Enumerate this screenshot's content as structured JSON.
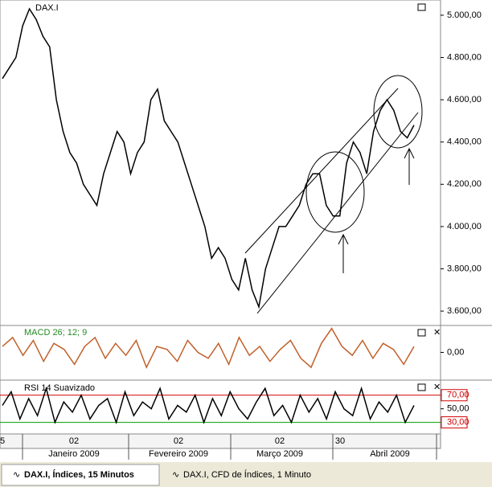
{
  "chart_data": [
    {
      "type": "line",
      "title": "DAX.I",
      "series": [
        {
          "color": "#000000",
          "values": [
            4700,
            4750,
            4800,
            4950,
            5030,
            4980,
            4900,
            4850,
            4600,
            4450,
            4350,
            4300,
            4200,
            4150,
            4100,
            4250,
            4350,
            4450,
            4400,
            4250,
            4350,
            4400,
            4600,
            4650,
            4500,
            4450,
            4400,
            4300,
            4200,
            4100,
            4000,
            3850,
            3900,
            3850,
            3750,
            3700,
            3850,
            3700,
            3620,
            3800,
            3900,
            4000,
            4000,
            4050,
            4100,
            4200,
            4250,
            4250,
            4100,
            4050,
            4050,
            4300,
            4400,
            4350,
            4250,
            4450,
            4550,
            4600,
            4550,
            4450,
            4420,
            4480
          ]
        }
      ],
      "ylim": [
        3532,
        5072
      ],
      "yticks": [
        {
          "value": 3600,
          "label": "3.600,00"
        },
        {
          "value": 3800,
          "label": "3.800,00"
        },
        {
          "value": 4000,
          "label": "4.000,00"
        },
        {
          "value": 4200,
          "label": "4.200,00"
        },
        {
          "value": 4400,
          "label": "4.400,00"
        },
        {
          "value": 4600,
          "label": "4.600,00"
        },
        {
          "value": 4800,
          "label": "4.800,00"
        },
        {
          "value": 5000,
          "label": "5.000,00"
        }
      ]
    },
    {
      "type": "line",
      "title": "MACD 26; 12; 9",
      "series": [
        {
          "color": "#c0602a",
          "values": [
            10,
            25,
            -5,
            20,
            -15,
            15,
            5,
            -20,
            10,
            25,
            -10,
            15,
            -5,
            20,
            -25,
            10,
            5,
            -15,
            20,
            0,
            -10,
            15,
            -20,
            25,
            -5,
            10,
            -15,
            5,
            20,
            -10,
            -25,
            15,
            40,
            10,
            -5,
            20,
            -10,
            15,
            5,
            -20,
            10
          ]
        }
      ],
      "ylim": [
        -45,
        45
      ],
      "yticks": [
        {
          "value": 0,
          "label": "0,00"
        }
      ]
    },
    {
      "type": "line",
      "title": "RSI 14 Suavizado",
      "series": [
        {
          "color": "#000000",
          "values": [
            55,
            75,
            35,
            65,
            40,
            80,
            30,
            60,
            45,
            70,
            35,
            55,
            65,
            30,
            75,
            40,
            60,
            50,
            80,
            35,
            55,
            45,
            70,
            30,
            65,
            40,
            75,
            50,
            35,
            60,
            80,
            40,
            55,
            30,
            70,
            45,
            65,
            35,
            75,
            50,
            40,
            80,
            35,
            60,
            45,
            70,
            30,
            55
          ]
        }
      ],
      "ylim": [
        13,
        91
      ],
      "yticks": [
        {
          "value": 30,
          "label": "30,00"
        },
        {
          "value": 50,
          "label": "50,00"
        },
        {
          "value": 70,
          "label": "70,00"
        }
      ]
    }
  ],
  "time_axis": [
    "5",
    "02",
    "Janeiro 2009",
    "02",
    "Fevereiro 2009",
    "02",
    "Março 2009",
    "30",
    "Abril 2009"
  ],
  "tabs": [
    "DAX.I, Índices, 15 Minutos",
    "DAX.I, CFD de Índices, 1 Minuto"
  ]
}
